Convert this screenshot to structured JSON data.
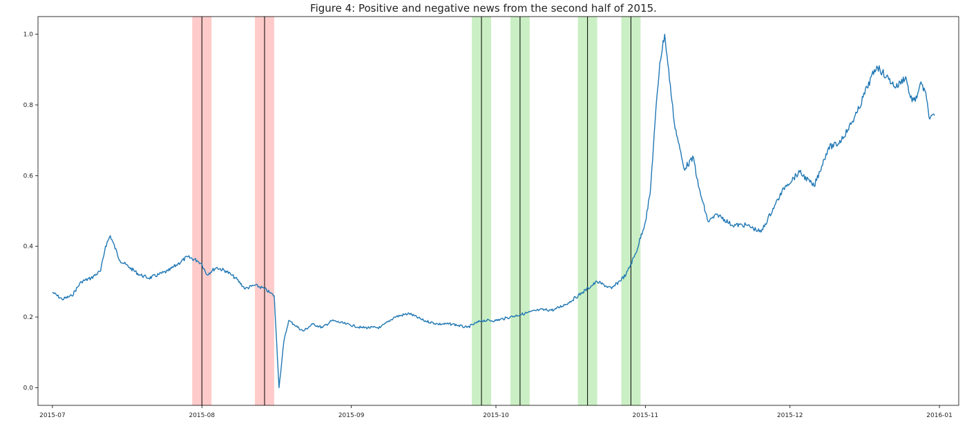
{
  "chart_data": {
    "type": "line",
    "title": "Figure 4: Positive and negative news from the second half of 2015.",
    "xlabel": "",
    "ylabel": "",
    "x_range": [
      "2015-06-28",
      "2016-01-05"
    ],
    "ylim": [
      -0.05,
      1.05
    ],
    "grid": false,
    "x_ticks": [
      "2015-07",
      "2015-08",
      "2015-09",
      "2015-10",
      "2015-11",
      "2015-12",
      "2016-01"
    ],
    "y_ticks": [
      "0.0",
      "0.2",
      "0.4",
      "0.6",
      "0.8",
      "1.0"
    ],
    "y_tick_values": [
      0.0,
      0.2,
      0.4,
      0.6,
      0.8,
      1.0
    ],
    "series": [
      {
        "color": "#1f77b4",
        "x": [
          "2015-07-01",
          "2015-07-03",
          "2015-07-05",
          "2015-07-07",
          "2015-07-09",
          "2015-07-11",
          "2015-07-12",
          "2015-07-13",
          "2015-07-15",
          "2015-07-17",
          "2015-07-19",
          "2015-07-21",
          "2015-07-23",
          "2015-07-25",
          "2015-07-27",
          "2015-07-29",
          "2015-07-31",
          "2015-08-01",
          "2015-08-02",
          "2015-08-04",
          "2015-08-06",
          "2015-08-07",
          "2015-08-08",
          "2015-08-10",
          "2015-08-12",
          "2015-08-14",
          "2015-08-15",
          "2015-08-16",
          "2015-08-17",
          "2015-08-18",
          "2015-08-19",
          "2015-08-20",
          "2015-08-22",
          "2015-08-24",
          "2015-08-26",
          "2015-08-28",
          "2015-08-31",
          "2015-09-03",
          "2015-09-07",
          "2015-09-10",
          "2015-09-13",
          "2015-09-16",
          "2015-09-19",
          "2015-09-22",
          "2015-09-25",
          "2015-09-28",
          "2015-10-01",
          "2015-10-04",
          "2015-10-07",
          "2015-10-10",
          "2015-10-13",
          "2015-10-16",
          "2015-10-19",
          "2015-10-22",
          "2015-10-25",
          "2015-10-28",
          "2015-10-30",
          "2015-11-01",
          "2015-11-02",
          "2015-11-03",
          "2015-11-04",
          "2015-11-05",
          "2015-11-07",
          "2015-11-09",
          "2015-11-11",
          "2015-11-12",
          "2015-11-14",
          "2015-11-16",
          "2015-11-19",
          "2015-11-22",
          "2015-11-25",
          "2015-11-28",
          "2015-11-30",
          "2015-12-03",
          "2015-12-06",
          "2015-12-09",
          "2015-12-11",
          "2015-12-13",
          "2015-12-15",
          "2015-12-17",
          "2015-12-19",
          "2015-12-21",
          "2015-12-23",
          "2015-12-25",
          "2015-12-26",
          "2015-12-27",
          "2015-12-28",
          "2015-12-29",
          "2015-12-30",
          "2015-12-31"
        ],
        "y": [
          0.27,
          0.25,
          0.26,
          0.3,
          0.31,
          0.33,
          0.4,
          0.43,
          0.36,
          0.34,
          0.32,
          0.31,
          0.32,
          0.33,
          0.35,
          0.37,
          0.36,
          0.35,
          0.32,
          0.34,
          0.33,
          0.32,
          0.31,
          0.28,
          0.29,
          0.28,
          0.27,
          0.26,
          0.0,
          0.13,
          0.19,
          0.18,
          0.16,
          0.18,
          0.17,
          0.19,
          0.18,
          0.17,
          0.17,
          0.2,
          0.21,
          0.19,
          0.18,
          0.18,
          0.17,
          0.19,
          0.19,
          0.2,
          0.21,
          0.22,
          0.22,
          0.24,
          0.27,
          0.3,
          0.28,
          0.32,
          0.38,
          0.47,
          0.55,
          0.75,
          0.92,
          1.0,
          0.75,
          0.62,
          0.65,
          0.57,
          0.47,
          0.49,
          0.46,
          0.46,
          0.44,
          0.52,
          0.57,
          0.61,
          0.57,
          0.68,
          0.69,
          0.73,
          0.78,
          0.85,
          0.91,
          0.88,
          0.85,
          0.88,
          0.82,
          0.81,
          0.86,
          0.84,
          0.76,
          0.77
        ]
      }
    ],
    "spans": [
      {
        "center": "2015-08-01",
        "start": "2015-07-30",
        "end": "2015-08-03",
        "color": "#ff9896"
      },
      {
        "center": "2015-08-14",
        "start": "2015-08-12",
        "end": "2015-08-16",
        "color": "#ff9896"
      },
      {
        "center": "2015-09-28",
        "start": "2015-09-26",
        "end": "2015-09-30",
        "color": "#98df8a"
      },
      {
        "center": "2015-10-06",
        "start": "2015-10-04",
        "end": "2015-10-08",
        "color": "#98df8a"
      },
      {
        "center": "2015-10-20",
        "start": "2015-10-18",
        "end": "2015-10-22",
        "color": "#98df8a"
      },
      {
        "center": "2015-10-29",
        "start": "2015-10-27",
        "end": "2015-10-31",
        "color": "#98df8a"
      }
    ]
  }
}
